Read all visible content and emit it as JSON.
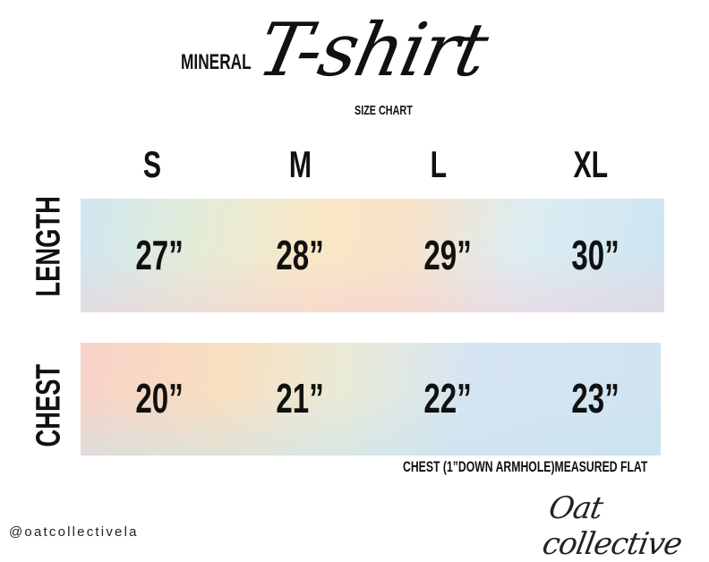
{
  "header": {
    "brand_word": "MINERAL",
    "title_script": "T-shirt",
    "subtitle": "SIZE CHART"
  },
  "sizes": [
    "S",
    "M",
    "L",
    "XL"
  ],
  "rows": [
    {
      "label": "LENGTH",
      "values": [
        "27”",
        "28”",
        "29”",
        "30”"
      ]
    },
    {
      "label": "CHEST",
      "values": [
        "20”",
        "21”",
        "22”",
        "23”"
      ]
    }
  ],
  "note": "CHEST (1”DOWN ARMHOLE)MEASURED FLAT",
  "footer": {
    "handle": "@oatcollectivela",
    "logo_text": "Oat collective"
  }
}
